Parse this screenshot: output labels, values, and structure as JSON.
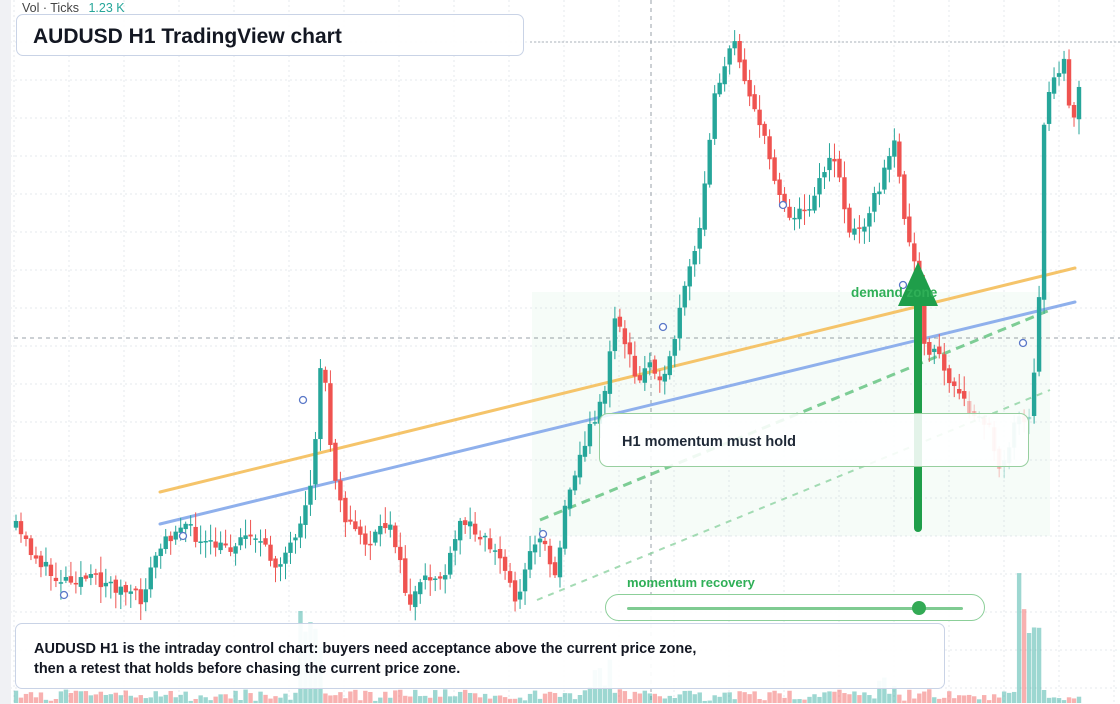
{
  "colors": {
    "bull": "#26a69a",
    "bear": "#ef5350",
    "orange_trendline": "#f5c46a",
    "blue_trendline": "#8fb0ec",
    "green_accent": "#2faf57",
    "grid": "#e6e8ee"
  },
  "volume_legend": {
    "label": "Vol · Ticks",
    "value": "1.23 K"
  },
  "chart_data": {
    "type": "candlestick",
    "title": "AUDUSD H1 TradingView chart",
    "symbol": "AUDUSD",
    "timeframe": "H1",
    "price_axis_labels": "not shown",
    "grid": true,
    "candles_count": 214,
    "annotations": {
      "demand_zone_label": "demand zone",
      "momentum_box": "H1 momentum must hold",
      "recovery_label": "momentum recovery",
      "momentum_recovery_level": 0.87,
      "caption": "AUDUSD H1 is the intraday control chart: buyers need acceptance above the current price zone, then a retest that holds before chasing the current price zone."
    }
  }
}
